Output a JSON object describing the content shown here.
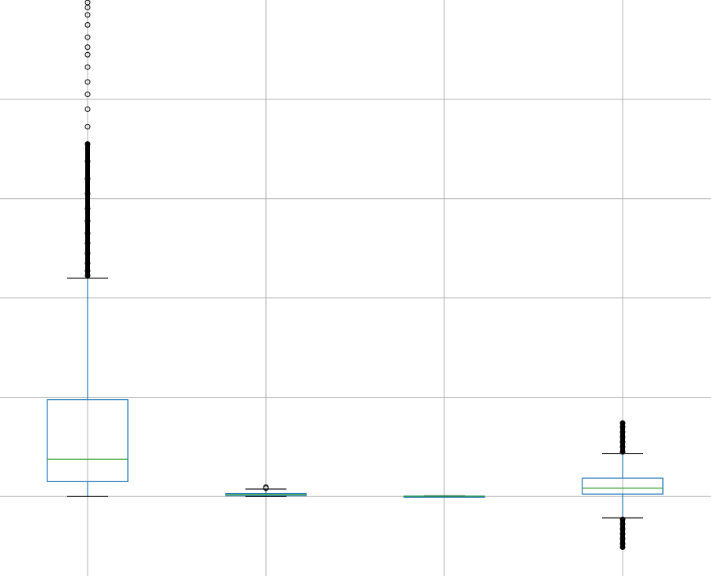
{
  "chart_data": {
    "type": "box",
    "grid": true,
    "ylim": [
      -1.6,
      10.0
    ],
    "colors": {
      "box": "#1f77b4",
      "median": "#2ca02c",
      "cap": "#000000",
      "flier": "#000000",
      "grid": "#b0b0b0"
    },
    "boxes": [
      {
        "q1": 0.3,
        "median": 0.75,
        "q3": 1.95,
        "whisker_low": 0.0,
        "whisker_high": 4.4,
        "fliers": [
          4.45,
          4.55,
          4.7,
          4.9,
          5.1,
          5.3,
          5.55,
          5.8,
          6.1,
          6.4,
          6.75,
          7.1,
          7.45,
          7.8,
          8.1,
          8.35,
          8.65,
          8.9,
          9.05,
          9.25,
          9.5,
          9.7,
          9.85,
          9.95
        ]
      },
      {
        "q1": 0.02,
        "median": 0.04,
        "q3": 0.06,
        "whisker_low": 0.0,
        "whisker_high": 0.15,
        "fliers": [
          0.17,
          0.19
        ]
      },
      {
        "q1": 0.0,
        "median": 0.005,
        "q3": 0.01,
        "whisker_low": 0.0,
        "whisker_high": 0.015,
        "fliers": []
      },
      {
        "q1": 0.05,
        "median": 0.17,
        "q3": 0.37,
        "whisker_low": -0.43,
        "whisker_high": 0.87,
        "fliers": [
          -0.46,
          -0.55,
          -0.65,
          -0.75,
          -0.85,
          -0.95,
          -1.02,
          0.9,
          1.0,
          1.1,
          1.2,
          1.3,
          1.4,
          1.48
        ]
      }
    ]
  }
}
